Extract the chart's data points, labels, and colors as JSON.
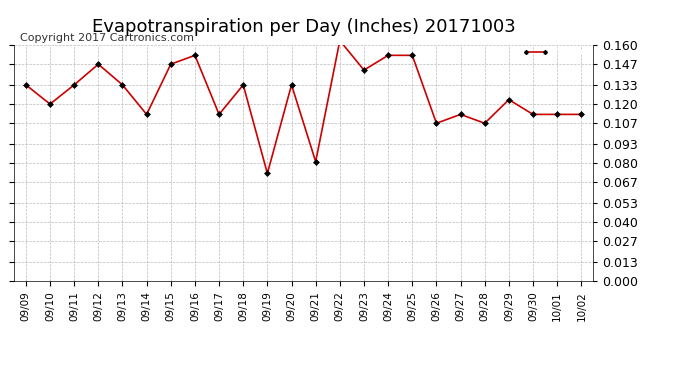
{
  "title": "Evapotranspiration per Day (Inches) 20171003",
  "copyright_text": "Copyright 2017 Cartronics.com",
  "legend_bg": "#ff0000",
  "legend_text_color": "#ffffff",
  "x_labels": [
    "09/09",
    "09/10",
    "09/11",
    "09/12",
    "09/13",
    "09/14",
    "09/15",
    "09/16",
    "09/17",
    "09/18",
    "09/19",
    "09/20",
    "09/21",
    "09/22",
    "09/23",
    "09/24",
    "09/25",
    "09/26",
    "09/27",
    "09/28",
    "09/29",
    "09/30",
    "10/01",
    "10/02"
  ],
  "y_values": [
    0.133,
    0.12,
    0.133,
    0.147,
    0.133,
    0.113,
    0.147,
    0.153,
    0.113,
    0.133,
    0.073,
    0.133,
    0.081,
    0.163,
    0.143,
    0.153,
    0.153,
    0.107,
    0.113,
    0.107,
    0.123,
    0.113,
    0.113,
    0.113
  ],
  "y_ticks": [
    0.0,
    0.013,
    0.027,
    0.04,
    0.053,
    0.067,
    0.08,
    0.093,
    0.107,
    0.12,
    0.133,
    0.147,
    0.16
  ],
  "ylim": [
    0.0,
    0.16
  ],
  "line_color": "#cc0000",
  "marker_color": "#000000",
  "grid_color": "#aaaaaa",
  "bg_color": "#ffffff",
  "title_fontsize": 13,
  "copyright_fontsize": 8,
  "tick_fontsize": 9,
  "x_tick_fontsize": 7.5
}
